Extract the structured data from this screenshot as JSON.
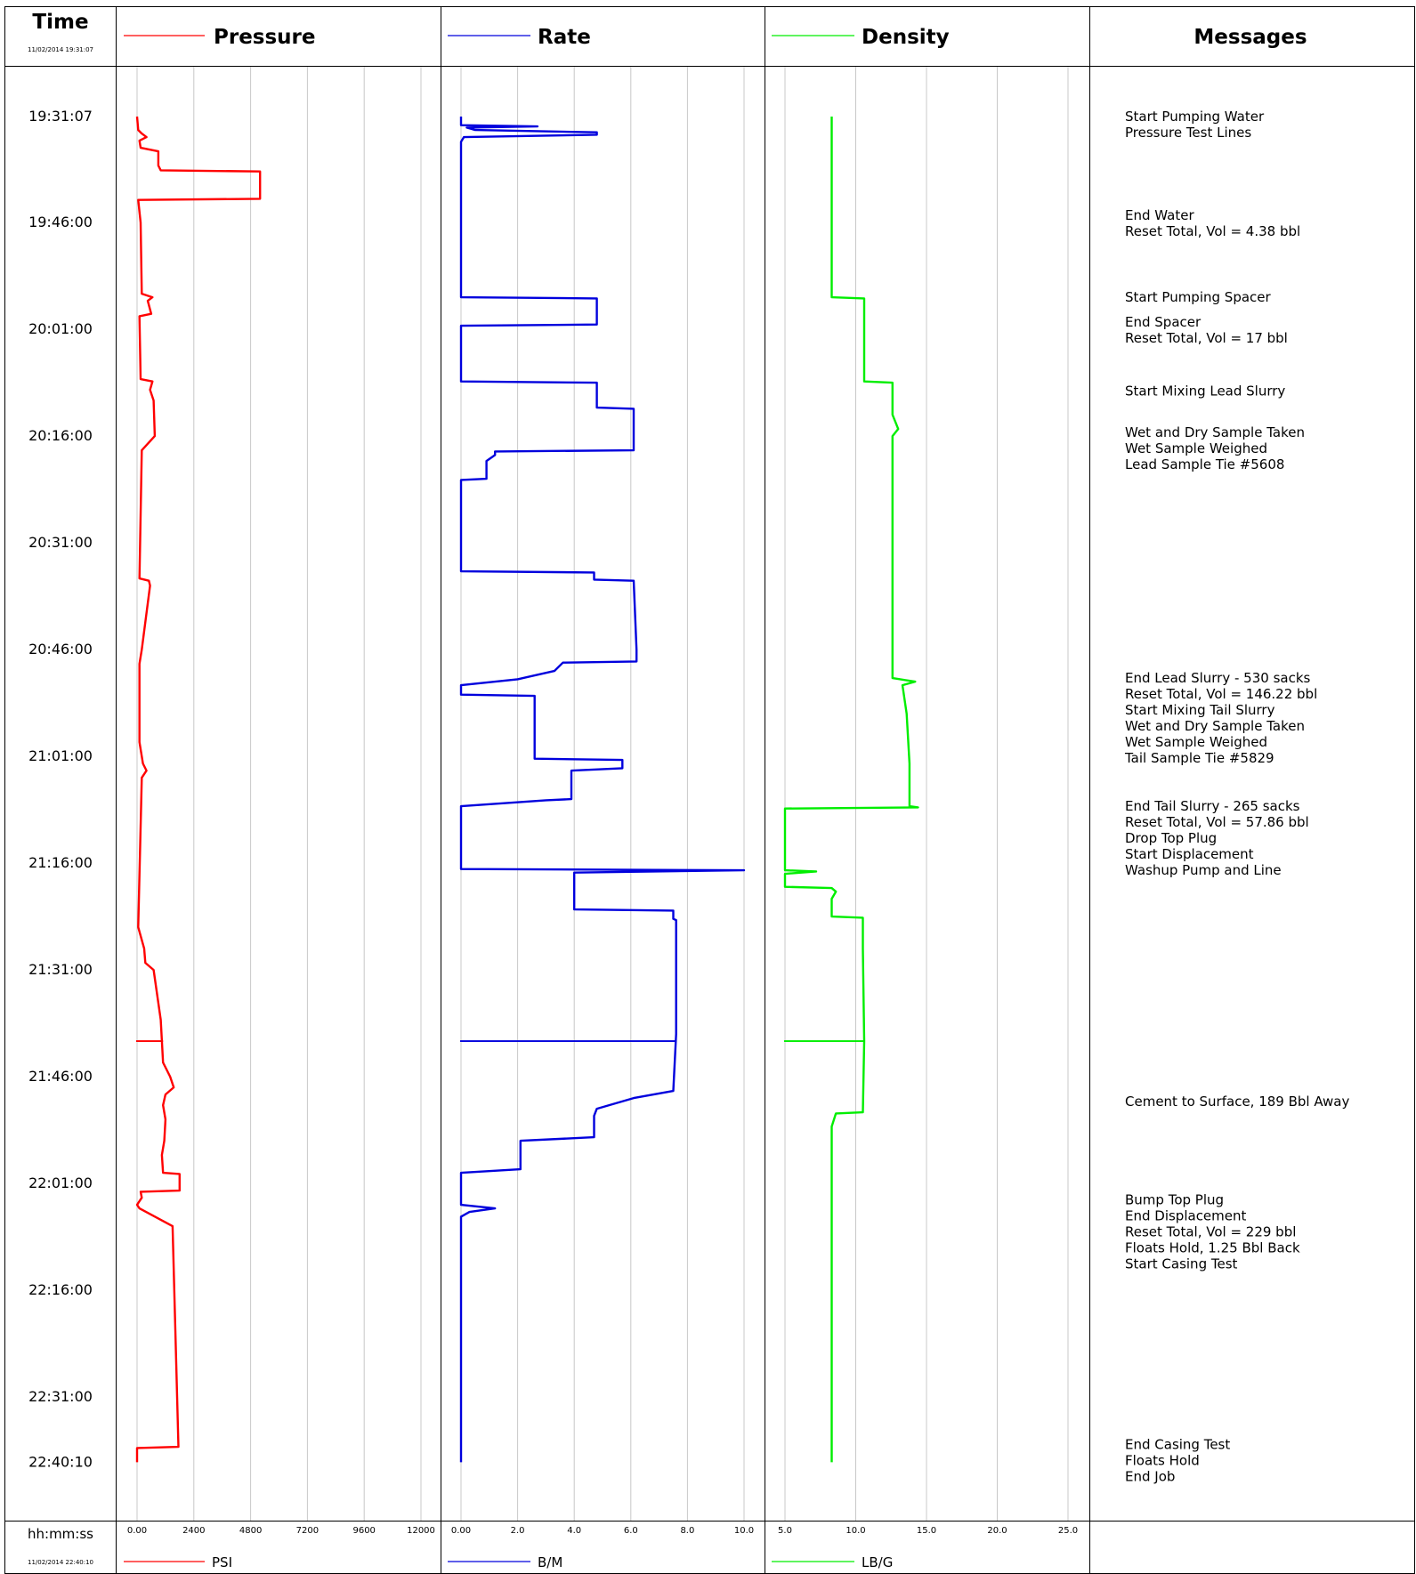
{
  "columns": {
    "time": {
      "title": "Time",
      "start": "11/02/2014 19:31:07",
      "footer_label": "hh:mm:ss",
      "end": "11/02/2014 22:40:10"
    },
    "pressure": {
      "title": "Pressure",
      "unit": "PSI",
      "color": "#ff0000"
    },
    "rate": {
      "title": "Rate",
      "unit": "B/M",
      "color": "#0000dd"
    },
    "density": {
      "title": "Density",
      "unit": "LB/G",
      "color": "#00ee00"
    },
    "messages": {
      "title": "Messages"
    }
  },
  "chart_data": {
    "type": "line",
    "x_axis": "time (vertical, top to bottom)",
    "time_ticks": [
      "19:31:07",
      "19:46:00",
      "20:01:00",
      "20:16:00",
      "20:31:00",
      "20:46:00",
      "21:01:00",
      "21:16:00",
      "21:31:00",
      "21:46:00",
      "22:01:00",
      "22:16:00",
      "22:31:00",
      "22:40:10"
    ],
    "pressure": {
      "ticks": [
        "0.00",
        "2400",
        "4800",
        "7200",
        "9600",
        "12000"
      ],
      "range": [
        0,
        12000
      ],
      "points": [
        [
          "19:31:07",
          0
        ],
        [
          "19:33:00",
          50
        ],
        [
          "19:33:30",
          200
        ],
        [
          "19:34:00",
          400
        ],
        [
          "19:34:30",
          100
        ],
        [
          "19:35:30",
          150
        ],
        [
          "19:36:00",
          900
        ],
        [
          "19:38:00",
          900
        ],
        [
          "19:38:40",
          1000
        ],
        [
          "19:38:50",
          5200
        ],
        [
          "19:42:30",
          5200
        ],
        [
          "19:42:40",
          5200
        ],
        [
          "19:42:50",
          50
        ],
        [
          "19:46:00",
          150
        ],
        [
          "19:56:00",
          200
        ],
        [
          "19:56:30",
          650
        ],
        [
          "19:57:00",
          450
        ],
        [
          "19:58:50",
          600
        ],
        [
          "19:59:10",
          100
        ],
        [
          "20:08:00",
          150
        ],
        [
          "20:08:20",
          650
        ],
        [
          "20:09:30",
          550
        ],
        [
          "20:11:00",
          700
        ],
        [
          "20:16:00",
          750
        ],
        [
          "20:18:00",
          200
        ],
        [
          "20:36:00",
          100
        ],
        [
          "20:36:20",
          500
        ],
        [
          "20:37:00",
          550
        ],
        [
          "20:46:00",
          200
        ],
        [
          "20:48:00",
          100
        ],
        [
          "20:59:00",
          100
        ],
        [
          "21:02:00",
          250
        ],
        [
          "21:03:00",
          400
        ],
        [
          "21:04:00",
          200
        ],
        [
          "21:25:00",
          50
        ],
        [
          "21:28:00",
          300
        ],
        [
          "21:30:00",
          350
        ],
        [
          "21:31:00",
          700
        ],
        [
          "21:38:00",
          1000
        ],
        [
          "21:44:00",
          1100
        ],
        [
          "21:46:00",
          1400
        ],
        [
          "21:47:30",
          1550
        ],
        [
          "21:48:30",
          1200
        ],
        [
          "21:50:00",
          1100
        ],
        [
          "21:52:00",
          1200
        ],
        [
          "21:55:00",
          1150
        ],
        [
          "21:57:00",
          1050
        ],
        [
          "21:59:30",
          1100
        ],
        [
          "21:59:40",
          1800
        ],
        [
          "22:02:00",
          1800
        ],
        [
          "22:02:10",
          150
        ],
        [
          "22:03:00",
          200
        ],
        [
          "22:04:00",
          0
        ],
        [
          "22:04:30",
          100
        ],
        [
          "22:07:00",
          1500
        ],
        [
          "22:38:00",
          1750
        ],
        [
          "22:38:10",
          0
        ],
        [
          "22:40:10",
          0
        ]
      ],
      "spike": {
        "time": "21:41:00",
        "value": 1100
      }
    },
    "rate": {
      "ticks": [
        "0.00",
        "2.0",
        "4.0",
        "6.0",
        "8.0",
        "10.0"
      ],
      "range": [
        0,
        10
      ],
      "points": [
        [
          "19:31:07",
          0
        ],
        [
          "19:32:20",
          0
        ],
        [
          "19:32:30",
          2.7
        ],
        [
          "19:32:40",
          0.2
        ],
        [
          "19:33:00",
          0.5
        ],
        [
          "19:33:20",
          4.8
        ],
        [
          "19:33:40",
          4.8
        ],
        [
          "19:34:00",
          0.1
        ],
        [
          "19:34:40",
          0
        ],
        [
          "19:56:30",
          0
        ],
        [
          "19:56:40",
          4.8
        ],
        [
          "20:00:20",
          4.8
        ],
        [
          "20:00:30",
          0
        ],
        [
          "20:08:20",
          0
        ],
        [
          "20:08:30",
          4.8
        ],
        [
          "20:12:00",
          4.8
        ],
        [
          "20:12:10",
          6.1
        ],
        [
          "20:18:00",
          6.1
        ],
        [
          "20:18:10",
          1.2
        ],
        [
          "20:18:40",
          1.2
        ],
        [
          "20:19:30",
          0.9
        ],
        [
          "20:22:00",
          0.9
        ],
        [
          "20:22:10",
          0
        ],
        [
          "20:35:00",
          0
        ],
        [
          "20:35:10",
          4.7
        ],
        [
          "20:36:10",
          4.7
        ],
        [
          "20:36:20",
          6.1
        ],
        [
          "20:46:00",
          6.2
        ],
        [
          "20:47:40",
          6.2
        ],
        [
          "20:47:50",
          3.6
        ],
        [
          "20:49:00",
          3.3
        ],
        [
          "20:50:10",
          2.0
        ],
        [
          "20:51:00",
          0
        ],
        [
          "20:52:20",
          0
        ],
        [
          "20:52:30",
          2.6
        ],
        [
          "21:01:20",
          2.6
        ],
        [
          "21:01:30",
          5.7
        ],
        [
          "21:02:40",
          5.7
        ],
        [
          "21:03:00",
          3.9
        ],
        [
          "21:07:00",
          3.9
        ],
        [
          "21:07:10",
          3.0
        ],
        [
          "21:08:00",
          0
        ],
        [
          "21:16:00",
          0
        ],
        [
          "21:16:50",
          0
        ],
        [
          "21:17:00",
          10.0
        ],
        [
          "21:17:20",
          4.0
        ],
        [
          "21:22:30",
          4.0
        ],
        [
          "21:22:40",
          7.5
        ],
        [
          "21:23:50",
          7.5
        ],
        [
          "21:24:00",
          7.6
        ],
        [
          "21:40:00",
          7.6
        ],
        [
          "21:48:00",
          7.5
        ],
        [
          "21:49:00",
          6.1
        ],
        [
          "21:50:30",
          4.8
        ],
        [
          "21:51:30",
          4.7
        ],
        [
          "21:54:30",
          4.7
        ],
        [
          "21:55:00",
          2.1
        ],
        [
          "21:59:00",
          2.1
        ],
        [
          "21:59:30",
          0
        ],
        [
          "22:04:00",
          0
        ],
        [
          "22:04:30",
          1.2
        ],
        [
          "22:05:00",
          0.3
        ],
        [
          "22:05:40",
          0
        ],
        [
          "22:40:10",
          0
        ]
      ],
      "spike": {
        "time": "21:41:00",
        "value": 7.6
      }
    },
    "density": {
      "ticks": [
        "5.0",
        "10.0",
        "15.0",
        "20.0",
        "25.0"
      ],
      "range": [
        5,
        25
      ],
      "points": [
        [
          "19:31:07",
          8.3
        ],
        [
          "19:56:30",
          8.3
        ],
        [
          "19:56:40",
          10.6
        ],
        [
          "20:00:20",
          10.6
        ],
        [
          "20:08:20",
          10.6
        ],
        [
          "20:08:30",
          12.6
        ],
        [
          "20:13:00",
          12.6
        ],
        [
          "20:15:00",
          13.0
        ],
        [
          "20:16:00",
          12.6
        ],
        [
          "20:46:00",
          12.6
        ],
        [
          "20:50:00",
          12.6
        ],
        [
          "20:50:30",
          14.2
        ],
        [
          "20:51:00",
          13.3
        ],
        [
          "20:55:00",
          13.6
        ],
        [
          "21:02:00",
          13.8
        ],
        [
          "21:08:00",
          13.8
        ],
        [
          "21:08:10",
          14.4
        ],
        [
          "21:08:20",
          5.0
        ],
        [
          "21:17:00",
          5.0
        ],
        [
          "21:17:10",
          7.2
        ],
        [
          "21:17:30",
          5.0
        ],
        [
          "21:19:20",
          5.0
        ],
        [
          "21:19:30",
          8.3
        ],
        [
          "21:20:00",
          8.6
        ],
        [
          "21:21:00",
          8.3
        ],
        [
          "21:23:30",
          8.3
        ],
        [
          "21:23:40",
          10.5
        ],
        [
          "21:28:00",
          10.5
        ],
        [
          "21:41:00",
          10.6
        ],
        [
          "21:51:00",
          10.5
        ],
        [
          "21:51:10",
          8.6
        ],
        [
          "21:53:00",
          8.3
        ],
        [
          "22:40:10",
          8.3
        ]
      ],
      "spike": {
        "time": "21:41:00",
        "value": 10.6
      }
    }
  },
  "messages": [
    {
      "time": "19:31:07",
      "lines": [
        "Start Pumping Water",
        "Pressure Test Lines"
      ]
    },
    {
      "time": "19:45:00",
      "lines": [
        "End Water",
        "Reset Total, Vol = 4.38  bbl"
      ]
    },
    {
      "time": "19:56:30",
      "lines": [
        "Start Pumping Spacer"
      ]
    },
    {
      "time": "20:00:00",
      "lines": [
        "End Spacer",
        "Reset Total, Vol = 17  bbl"
      ]
    },
    {
      "time": "20:09:40",
      "lines": [
        "Start Mixing Lead Slurry"
      ]
    },
    {
      "time": "20:15:30",
      "lines": [
        "Wet and Dry Sample Taken",
        "Wet Sample Weighed",
        "Lead Sample Tie #5608"
      ]
    },
    {
      "time": "20:50:00",
      "lines": [
        "End Lead Slurry - 530 sacks",
        "Reset Total, Vol = 146.22  bbl",
        "Start Mixing Tail Slurry",
        "Wet and Dry Sample Taken",
        "Wet Sample Weighed",
        "Tail Sample  Tie #5829"
      ]
    },
    {
      "time": "21:08:00",
      "lines": [
        "End Tail Slurry - 265 sacks",
        "Reset Total, Vol = 57.86  bbl",
        "Drop Top Plug",
        "Start Displacement",
        "Washup Pump and Line"
      ]
    },
    {
      "time": "21:49:30",
      "lines": [
        "Cement to Surface, 189 Bbl Away"
      ]
    },
    {
      "time": "22:03:20",
      "lines": [
        "Bump Top Plug",
        "End Displacement",
        "Reset Total, Vol = 229  bbl",
        "Floats Hold, 1.25 Bbl Back",
        "Start Casing Test"
      ]
    },
    {
      "time": "22:37:40",
      "lines": [
        "End Casing Test",
        "Floats Hold",
        "End Job"
      ]
    }
  ]
}
